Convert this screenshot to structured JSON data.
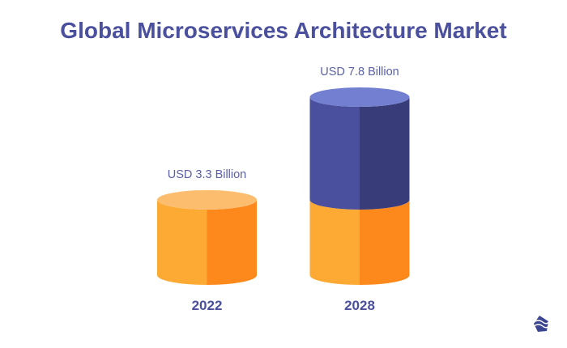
{
  "chart_data": {
    "type": "bar",
    "style": "3d-cylinder",
    "title": "Global Microservices Architecture Market",
    "categories": [
      "2022",
      "2028"
    ],
    "values": [
      3.3,
      7.8
    ],
    "data_labels": [
      "USD 3.3 Billion",
      "USD 7.8 Billion"
    ],
    "unit": "USD Billion",
    "grid": false,
    "colors": {
      "base_light": "#fcaa33",
      "base_dark": "#fd881c",
      "base_top": "#fdbd6e",
      "growth_light": "#4a4f9e",
      "growth_dark": "#383c78",
      "growth_top": "#7380d1",
      "title": "#4a4f9e",
      "label": "#5a60a8"
    }
  },
  "logo": {
    "icon": "wave-diamond-logo-icon",
    "color": "#3b4590"
  }
}
